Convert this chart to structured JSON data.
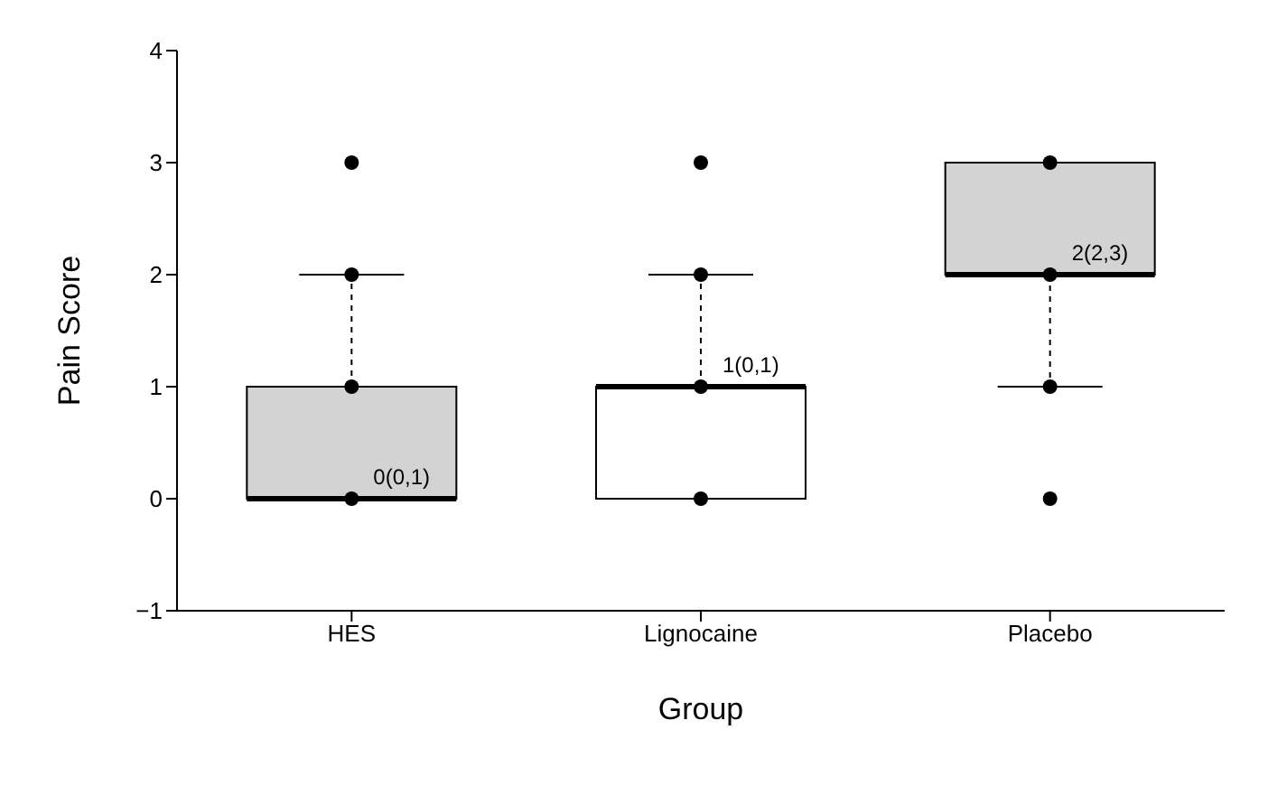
{
  "chart_data": {
    "type": "box",
    "xlabel": "Group",
    "ylabel": "Pain Score",
    "categories": [
      "HES",
      "Lignocaine",
      "Placebo"
    ],
    "colors": [
      "#d3d3d3",
      "#ffffff",
      "#d3d3d3"
    ],
    "boxes": [
      {
        "low": 0,
        "q1": 0,
        "median": 0,
        "q3": 1,
        "high": 2
      },
      {
        "low": 0,
        "q1": 0,
        "median": 1,
        "q3": 1,
        "high": 2
      },
      {
        "low": 1,
        "q1": 2,
        "median": 2,
        "q3": 3,
        "high": 3
      }
    ],
    "series": [
      {
        "type": "scatter",
        "color": "#000000",
        "x": [
          "HES",
          "HES",
          "HES",
          "HES",
          "Lignocaine",
          "Lignocaine",
          "Lignocaine",
          "Lignocaine",
          "Placebo",
          "Placebo",
          "Placebo",
          "Placebo"
        ],
        "values": [
          0,
          1,
          2,
          3,
          0,
          1,
          2,
          3,
          0,
          1,
          2,
          3
        ]
      }
    ],
    "ylim": [
      -1,
      4
    ],
    "yticks": [
      {
        "value": -1,
        "label": "−1"
      },
      0,
      1,
      2,
      3,
      4
    ],
    "annotations": [
      {
        "text": "0(0,1)",
        "x": "HES",
        "y": 0
      },
      {
        "text": "1(0,1)",
        "x": "Lignocaine",
        "y": 1
      },
      {
        "text": "2(2,3)",
        "x": "Placebo",
        "y": 2
      }
    ]
  }
}
